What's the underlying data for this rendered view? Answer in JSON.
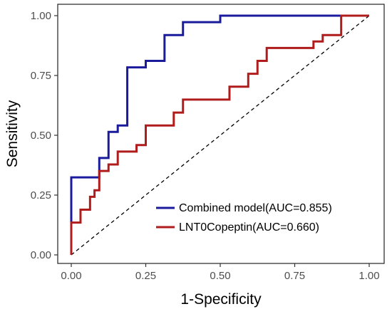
{
  "chart_data": {
    "type": "line",
    "xlabel": "1-Specificity",
    "ylabel": "Sensitivity",
    "xlim": [
      0,
      1
    ],
    "ylim": [
      0,
      1
    ],
    "x_ticks": [
      "0.00",
      "0.25",
      "0.50",
      "0.75",
      "1.00"
    ],
    "y_ticks": [
      "0.00",
      "0.25",
      "0.50",
      "0.75",
      "1.00"
    ],
    "grid": false,
    "legend_position": "bottom-right",
    "reference_line": {
      "style": "dashed",
      "from": [
        0,
        0
      ],
      "to": [
        1,
        1
      ]
    },
    "series": [
      {
        "name": "Combined model(AUC=0.855)",
        "color": "#1a1a9c",
        "points": [
          [
            0,
            0
          ],
          [
            0,
            0.324
          ],
          [
            0.094,
            0.324
          ],
          [
            0.094,
            0.405
          ],
          [
            0.125,
            0.405
          ],
          [
            0.125,
            0.514
          ],
          [
            0.156,
            0.514
          ],
          [
            0.156,
            0.541
          ],
          [
            0.188,
            0.541
          ],
          [
            0.188,
            0.784
          ],
          [
            0.25,
            0.784
          ],
          [
            0.25,
            0.811
          ],
          [
            0.313,
            0.811
          ],
          [
            0.313,
            0.919
          ],
          [
            0.375,
            0.919
          ],
          [
            0.375,
            0.973
          ],
          [
            0.5,
            0.973
          ],
          [
            0.5,
            1.0
          ],
          [
            1.0,
            1.0
          ]
        ]
      },
      {
        "name": "LNT0Copeptin(AUC=0.660)",
        "color": "#b01c1c",
        "points": [
          [
            0,
            0
          ],
          [
            0,
            0.135
          ],
          [
            0.031,
            0.135
          ],
          [
            0.031,
            0.189
          ],
          [
            0.063,
            0.189
          ],
          [
            0.063,
            0.243
          ],
          [
            0.078,
            0.243
          ],
          [
            0.078,
            0.27
          ],
          [
            0.094,
            0.27
          ],
          [
            0.094,
            0.351
          ],
          [
            0.125,
            0.351
          ],
          [
            0.125,
            0.378
          ],
          [
            0.156,
            0.378
          ],
          [
            0.156,
            0.432
          ],
          [
            0.219,
            0.432
          ],
          [
            0.219,
            0.459
          ],
          [
            0.25,
            0.459
          ],
          [
            0.25,
            0.541
          ],
          [
            0.344,
            0.541
          ],
          [
            0.344,
            0.595
          ],
          [
            0.375,
            0.595
          ],
          [
            0.375,
            0.649
          ],
          [
            0.531,
            0.649
          ],
          [
            0.531,
            0.703
          ],
          [
            0.594,
            0.703
          ],
          [
            0.594,
            0.757
          ],
          [
            0.625,
            0.757
          ],
          [
            0.625,
            0.811
          ],
          [
            0.656,
            0.811
          ],
          [
            0.656,
            0.865
          ],
          [
            0.813,
            0.865
          ],
          [
            0.813,
            0.892
          ],
          [
            0.844,
            0.892
          ],
          [
            0.844,
            0.919
          ],
          [
            0.906,
            0.919
          ],
          [
            0.906,
            1.0
          ],
          [
            1.0,
            1.0
          ]
        ]
      }
    ]
  }
}
